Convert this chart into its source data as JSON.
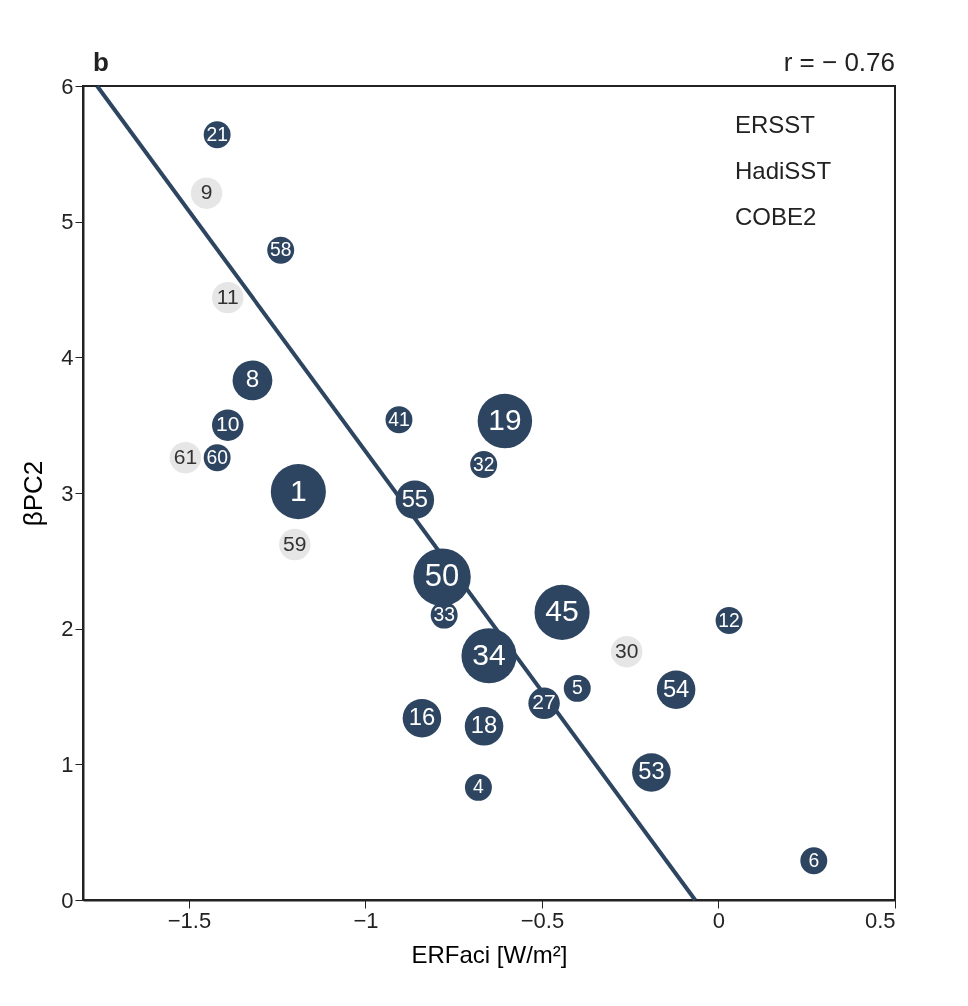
{
  "chart_data": {
    "type": "bubble",
    "title": "b",
    "xlabel": "ERFaci [W/m²]",
    "ylabel": "βPC2",
    "xlim": [
      -1.8,
      0.5
    ],
    "ylim": [
      0,
      6
    ],
    "xticks": [
      {
        "value": -1.5,
        "label": "−1.5"
      },
      {
        "value": -1,
        "label": "−1"
      },
      {
        "value": -0.5,
        "label": "−0.5"
      },
      0,
      0.5
    ],
    "yticks": [
      0,
      1,
      2,
      3,
      4,
      5,
      6
    ],
    "grid": false,
    "legend": false,
    "series": [
      {
        "color": "#2d4560",
        "x": [
          -1.42,
          -1.24,
          -1.32,
          -1.39,
          -1.42,
          -1.19,
          -0.905,
          -0.86,
          -0.605,
          -0.665,
          -0.783,
          -0.777,
          -0.443,
          -0.65,
          0.03,
          -0.4,
          -0.494,
          -0.12,
          -0.84,
          -0.664,
          -0.19,
          -0.68,
          0.27
        ],
        "values": [
          5.64,
          4.79,
          3.83,
          3.5,
          3.26,
          3.01,
          3.54,
          2.95,
          3.53,
          3.21,
          2.38,
          2.1,
          2.12,
          1.8,
          2.06,
          1.56,
          1.45,
          1.55,
          1.34,
          1.28,
          0.94,
          0.83,
          0.29
        ],
        "sizes": [
          0.22,
          0.22,
          0.48,
          0.3,
          0.22,
          0.92,
          0.22,
          0.45,
          0.9,
          0.22,
          1,
          0.22,
          0.92,
          0.92,
          0.22,
          0.22,
          0.3,
          0.45,
          0.45,
          0.45,
          0.45,
          0.22,
          0.22
        ]
      },
      {
        "color": "#e6e6e6",
        "x": [
          -1.45,
          -1.39,
          -1.51,
          -1.2,
          -0.26
        ],
        "values": [
          5.21,
          4.44,
          3.26,
          2.62,
          1.83
        ],
        "sizes": [
          0.3,
          0.3,
          0.3,
          0.3,
          0.3
        ]
      },
      {
        "type": "line",
        "color": "#2d4560",
        "x": [
          -1.76,
          -0.066
        ],
        "values": [
          6,
          0
        ]
      }
    ],
    "annotations": [
      "r = − 0.76",
      "ERSST",
      "HadiSST",
      "COBE2",
      {
        "text": "21",
        "x": -1.42,
        "y": 5.64
      },
      {
        "text": "58",
        "x": -1.24,
        "y": 4.79
      },
      {
        "text": "8",
        "x": -1.32,
        "y": 3.83
      },
      {
        "text": "10",
        "x": -1.39,
        "y": 3.5
      },
      {
        "text": "60",
        "x": -1.42,
        "y": 3.26
      },
      {
        "text": "1",
        "x": -1.19,
        "y": 3.01
      },
      {
        "text": "41",
        "x": -0.905,
        "y": 3.54
      },
      {
        "text": "55",
        "x": -0.86,
        "y": 2.95
      },
      {
        "text": "19",
        "x": -0.605,
        "y": 3.53
      },
      {
        "text": "32",
        "x": -0.665,
        "y": 3.21
      },
      {
        "text": "50",
        "x": -0.783,
        "y": 2.38
      },
      {
        "text": "33",
        "x": -0.777,
        "y": 2.1
      },
      {
        "text": "45",
        "x": -0.443,
        "y": 2.12
      },
      {
        "text": "34",
        "x": -0.65,
        "y": 1.8
      },
      {
        "text": "12",
        "x": 0.03,
        "y": 2.06
      },
      {
        "text": "5",
        "x": -0.4,
        "y": 1.56
      },
      {
        "text": "27",
        "x": -0.494,
        "y": 1.45
      },
      {
        "text": "54",
        "x": -0.12,
        "y": 1.55
      },
      {
        "text": "16",
        "x": -0.84,
        "y": 1.34
      },
      {
        "text": "18",
        "x": -0.664,
        "y": 1.28
      },
      {
        "text": "53",
        "x": -0.19,
        "y": 0.94
      },
      {
        "text": "4",
        "x": -0.68,
        "y": 0.83
      },
      {
        "text": "6",
        "x": 0.27,
        "y": 0.29
      },
      {
        "text": "9",
        "x": -1.45,
        "y": 5.21
      },
      {
        "text": "11",
        "x": -1.39,
        "y": 4.44
      },
      {
        "text": "61",
        "x": -1.51,
        "y": 3.26
      },
      {
        "text": "59",
        "x": -1.2,
        "y": 2.62
      },
      {
        "text": "30",
        "x": -0.26,
        "y": 1.83
      }
    ]
  }
}
